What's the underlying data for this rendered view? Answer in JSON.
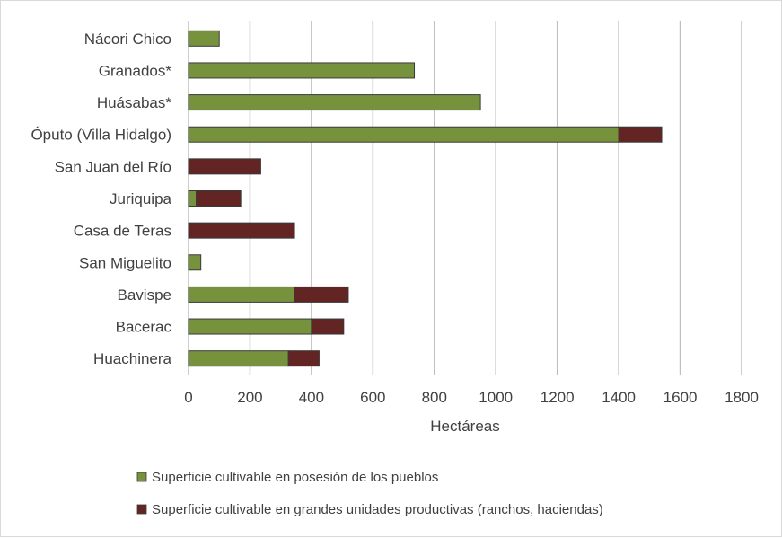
{
  "chart_data": {
    "type": "bar",
    "orientation": "horizontal",
    "stacked": true,
    "categories": [
      "Nácori Chico",
      "Granados*",
      "Huásabas*",
      "Óputo (Villa Hidalgo)",
      "San Juan del Río",
      "Juriquipa",
      "Casa de Teras",
      "San Miguelito",
      "Bavispe",
      "Bacerac",
      "Huachinera"
    ],
    "series": [
      {
        "name": "Superficie cultivable en posesión de los pueblos",
        "color": "#76923c",
        "values": [
          100,
          735,
          950,
          1400,
          0,
          25,
          0,
          40,
          345,
          400,
          325
        ]
      },
      {
        "name": "Superficie cultivable en grandes unidades productivas (ranchos, haciendas)",
        "color": "#632523",
        "values": [
          0,
          0,
          0,
          140,
          235,
          145,
          345,
          0,
          175,
          105,
          100
        ]
      }
    ],
    "xlabel": "Hectáreas",
    "ylabel": "",
    "xlim": [
      0,
      1800
    ],
    "x_ticks": [
      "0",
      "200",
      "400",
      "600",
      "800",
      "1000",
      "1200",
      "1400",
      "1600",
      "1800"
    ],
    "grid": "vertical",
    "legend_position": "bottom"
  }
}
